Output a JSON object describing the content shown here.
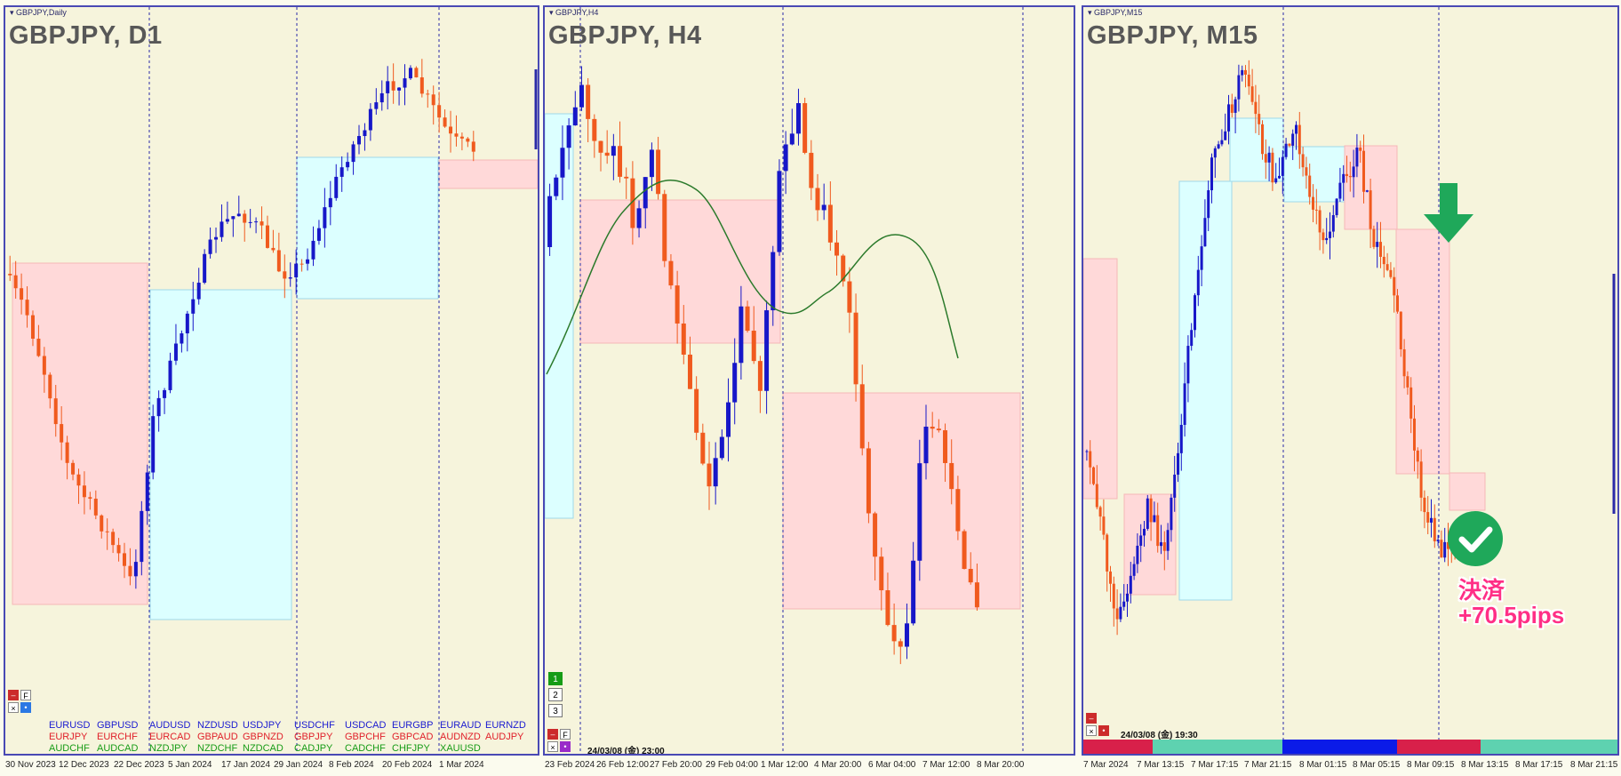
{
  "panels": [
    {
      "id": "d1",
      "small_title": "GBPJPY,Daily",
      "big_title": "GBPJPY, D1"
    },
    {
      "id": "h4",
      "small_title": "GBPJPY,H4",
      "big_title": "GBPJPY, H4"
    },
    {
      "id": "m15",
      "small_title": "GBPJPY,M15",
      "big_title": "GBPJPY, M15"
    }
  ],
  "dates_d1": [
    "30 Nov 2023",
    "12 Dec 2023",
    "22 Dec 2023",
    "5 Jan 2024",
    "17 Jan 2024",
    "29 Jan 2024",
    "8 Feb 2024",
    "20 Feb 2024",
    "1 Mar 2024"
  ],
  "dates_h4": [
    "23 Feb 2024",
    "26 Feb 12:00",
    "27 Feb 20:00",
    "29 Feb 04:00",
    "1 Mar 12:00",
    "4 Mar 20:00",
    "6 Mar 04:00",
    "7 Mar 12:00",
    "8 Mar 20:00"
  ],
  "dates_m15": [
    "7 Mar 2024",
    "7 Mar 13:15",
    "7 Mar 17:15",
    "7 Mar 21:15",
    "8 Mar 01:15",
    "8 Mar 05:15",
    "8 Mar 09:15",
    "8 Mar 13:15",
    "8 Mar 17:15",
    "8 Mar 21:15"
  ],
  "pairs": {
    "blue": [
      "EURUSD",
      "GBPUSD",
      "AUDUSD",
      "NZDUSD",
      "USDJPY",
      "USDCHF",
      "USDCAD",
      "EURGBP",
      "EURAUD",
      "EURNZD"
    ],
    "red": [
      "EURJPY",
      "EURCHF",
      "EURCAD",
      "GBPAUD",
      "GBPNZD",
      "GBPJPY",
      "GBPCHF",
      "GBPCAD",
      "AUDNZD",
      "AUDJPY"
    ],
    "green": [
      "AUDCHF",
      "AUDCAD",
      "NZDJPY",
      "NZDCHF",
      "NZDCAD",
      "CADJPY",
      "CADCHF",
      "CHFJPY",
      "XAUUSD"
    ]
  },
  "controls": {
    "f_label": "F",
    "numbers": [
      "1",
      "2",
      "3"
    ]
  },
  "timestamps": {
    "h4": "24/03/08 (金) 23:00",
    "m15": "24/03/08 (金) 19:30"
  },
  "result": {
    "line1": "決済",
    "line2": "+70.5pips"
  },
  "colors": {
    "bull": "#1717c8",
    "bear": "#f05a1e",
    "pink_box": "#ffd9d9",
    "cyan_box": "#dcffff",
    "green_arrow": "#1fa85a",
    "ma_line": "#2b7a2b",
    "result_text": "#ff2f86"
  }
}
